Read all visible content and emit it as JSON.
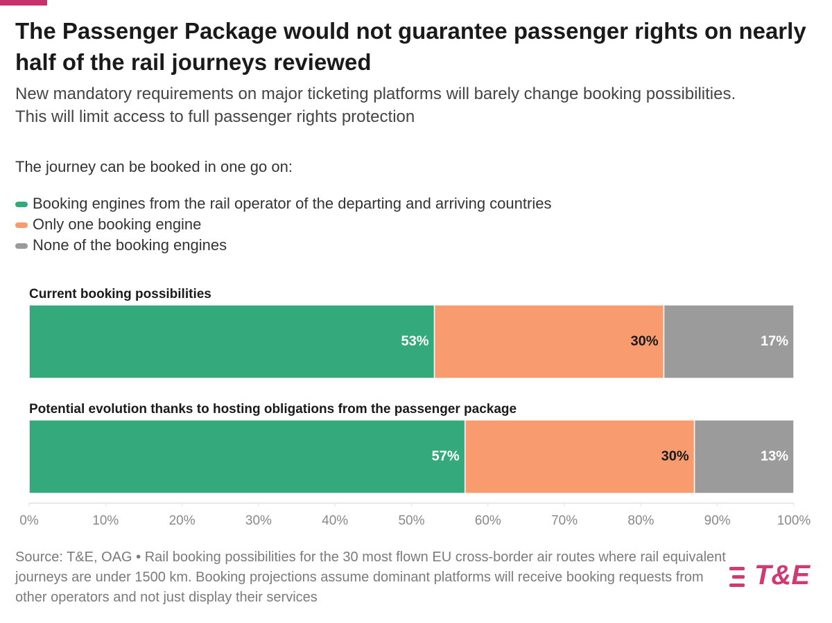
{
  "chart_data": {
    "type": "stacked-bar-horizontal",
    "title": "The Passenger Package would not guarantee passenger rights on nearly half of the rail journeys reviewed",
    "subtitle": "New mandatory requirements on major ticketing platforms will barely change booking possibilities. This will limit access to full passenger rights protection",
    "legend_title": "The journey can be booked in one go on:",
    "categories": [
      "Current booking possibilities",
      "Potential evolution thanks to hosting obligations from the passenger package"
    ],
    "series": [
      {
        "name": "Booking engines from the rail operator of the departing and arriving countries",
        "color": "#34a97b",
        "label_color": "#ffffff",
        "values": [
          53,
          57
        ],
        "value_labels": [
          "53%",
          "57%"
        ]
      },
      {
        "name": "Only one booking engine",
        "color": "#f89b6f",
        "label_color": "#1a1a1a",
        "values": [
          30,
          30
        ],
        "value_labels": [
          "30%",
          "30%"
        ]
      },
      {
        "name": "None of the booking engines",
        "color": "#9b9b9b",
        "label_color": "#ffffff",
        "values": [
          17,
          13
        ],
        "value_labels": [
          "17%",
          "13%"
        ]
      }
    ],
    "xlim": [
      0,
      100
    ],
    "xticks": [
      {
        "value": 0,
        "label": "0%"
      },
      {
        "value": 10,
        "label": "10%"
      },
      {
        "value": 20,
        "label": "20%"
      },
      {
        "value": 30,
        "label": "30%"
      },
      {
        "value": 40,
        "label": "40%"
      },
      {
        "value": 50,
        "label": "50%"
      },
      {
        "value": 60,
        "label": "60%"
      },
      {
        "value": 70,
        "label": "70%"
      },
      {
        "value": 80,
        "label": "80%"
      },
      {
        "value": 90,
        "label": "90%"
      },
      {
        "value": 100,
        "label": "100%"
      }
    ],
    "source": "Source: T&E, OAG • Rail booking possibilities for the 30 most flown EU cross-border air routes where rail equivalent journeys are under 1500 km. Booking projections assume dominant platforms will receive booking requests from other operators and not just display their services"
  },
  "logo": "T&E"
}
